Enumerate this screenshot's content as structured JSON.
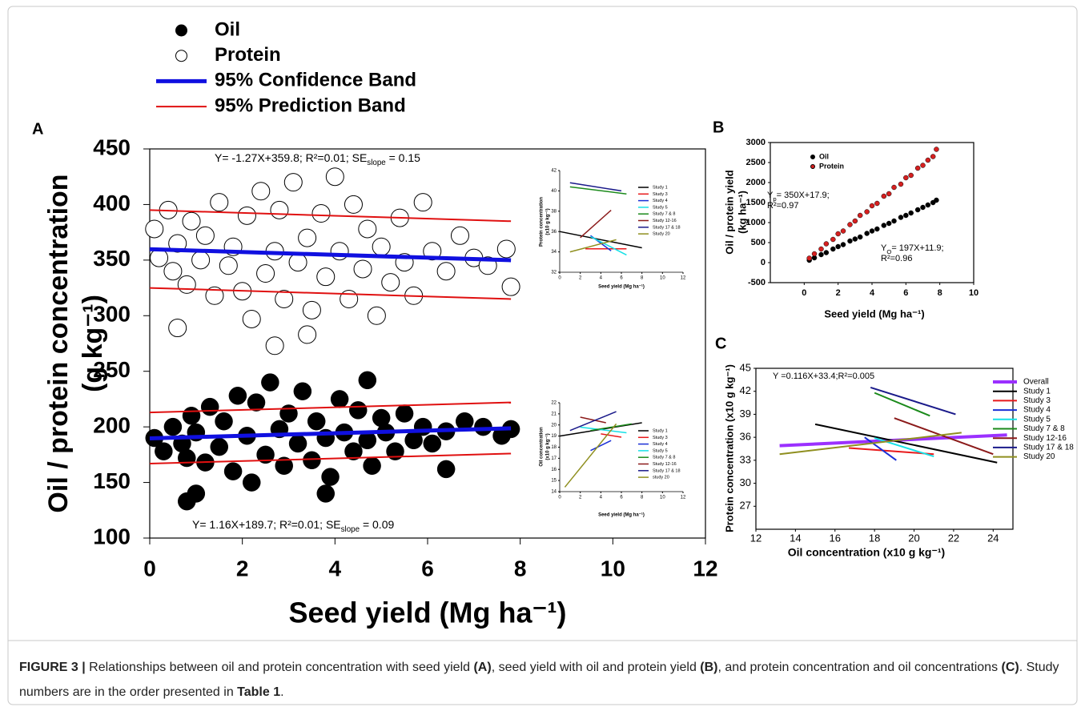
{
  "chart_data": [
    {
      "type": "scatter",
      "label": "A",
      "xlabel": "Seed yield (Mg ha⁻¹)",
      "ylabel": [
        "Oil / protein concentration",
        "(g kg⁻¹)"
      ],
      "xlim": [
        0,
        12
      ],
      "ylim": [
        100,
        450
      ],
      "xticks": [
        0,
        2,
        4,
        6,
        8,
        10,
        12
      ],
      "yticks": [
        100,
        150,
        200,
        250,
        300,
        350,
        400,
        450
      ],
      "annotations": [
        {
          "parts": [
            "Y= -1.27X+359.8; R²=0.01; SE",
            "slope",
            " = 0.15"
          ]
        },
        {
          "parts": [
            "Y= 1.16X+189.7; R²=0.01; SE",
            "slope",
            " = 0.09"
          ]
        }
      ],
      "series": [
        {
          "name": "Oil",
          "color": "#000000",
          "marker": "filled",
          "x": [
            0.1,
            0.3,
            0.5,
            0.7,
            0.8,
            0.9,
            1.0,
            1.2,
            1.3,
            1.5,
            1.6,
            1.8,
            1.9,
            2.1,
            2.2,
            2.3,
            2.5,
            2.6,
            2.8,
            2.9,
            3.0,
            3.2,
            3.3,
            3.5,
            3.6,
            3.8,
            3.9,
            4.1,
            4.2,
            4.4,
            4.5,
            4.7,
            4.8,
            5.0,
            5.1,
            5.3,
            5.5,
            5.7,
            5.9,
            6.1,
            6.4,
            6.8,
            7.2,
            7.6,
            7.8,
            0.8,
            1.0,
            3.8,
            6.4,
            4.7
          ],
          "values": [
            190,
            178,
            200,
            185,
            172,
            210,
            195,
            168,
            218,
            182,
            205,
            160,
            228,
            192,
            150,
            222,
            175,
            240,
            198,
            165,
            212,
            185,
            232,
            170,
            205,
            190,
            155,
            225,
            195,
            178,
            215,
            188,
            165,
            208,
            195,
            178,
            212,
            188,
            200,
            185,
            196,
            205,
            200,
            192,
            198,
            133,
            140,
            140,
            162,
            242
          ]
        },
        {
          "name": "Protein",
          "color": "#000000",
          "marker": "open",
          "x": [
            0.1,
            0.2,
            0.4,
            0.5,
            0.6,
            0.8,
            0.9,
            1.1,
            1.2,
            1.4,
            1.5,
            1.7,
            1.8,
            2.0,
            2.1,
            2.2,
            2.4,
            2.5,
            2.7,
            2.8,
            2.9,
            3.1,
            3.2,
            3.4,
            3.5,
            3.7,
            3.8,
            4.0,
            4.1,
            4.3,
            4.4,
            4.6,
            4.7,
            4.9,
            5.0,
            5.2,
            5.4,
            5.5,
            5.7,
            5.9,
            6.1,
            6.4,
            6.7,
            7.0,
            7.3,
            7.7,
            7.8,
            0.6,
            2.7,
            3.4
          ],
          "values": [
            378,
            352,
            395,
            340,
            365,
            328,
            385,
            350,
            372,
            318,
            402,
            345,
            362,
            322,
            390,
            297,
            412,
            338,
            358,
            395,
            315,
            420,
            348,
            370,
            305,
            392,
            335,
            425,
            358,
            315,
            400,
            342,
            378,
            300,
            362,
            330,
            388,
            348,
            318,
            402,
            358,
            340,
            372,
            352,
            345,
            360,
            326,
            289,
            273,
            283
          ]
        },
        {
          "name": "95% Confidence Band",
          "color": "#1010e0",
          "lines": [
            {
              "x": [
                0,
                7.8
              ],
              "values": [
                359.8,
                349.9
              ]
            },
            {
              "x": [
                0,
                7.8
              ],
              "values": [
                189.7,
                198.7
              ]
            }
          ]
        },
        {
          "name": "95% Prediction Band",
          "color": "#e01010",
          "lines": [
            {
              "x": [
                0,
                7.8
              ],
              "values": [
                395,
                385
              ]
            },
            {
              "x": [
                0,
                7.8
              ],
              "values": [
                325,
                315
              ]
            },
            {
              "x": [
                0,
                7.8
              ],
              "values": [
                213,
                222
              ]
            },
            {
              "x": [
                0,
                7.8
              ],
              "values": [
                167,
                176
              ]
            }
          ]
        }
      ]
    },
    {
      "type": "line",
      "xlabel": "Seed yield (Mg ha⁻¹)",
      "ylabel": [
        "Protein concentration",
        "(x10 g kg⁻¹)"
      ],
      "xlim": [
        0,
        12
      ],
      "ylim": [
        32,
        42
      ],
      "xticks": [
        0,
        2,
        4,
        6,
        8,
        10,
        12
      ],
      "yticks": [
        32,
        34,
        36,
        38,
        40,
        42
      ],
      "series": [
        {
          "name": "Study 1",
          "color": "#000000",
          "x": [
            0,
            8
          ],
          "values": [
            36,
            34.4
          ]
        },
        {
          "name": "Study 3",
          "color": "#e8191b",
          "x": [
            2.5,
            6.5
          ],
          "values": [
            34.3,
            34.3
          ]
        },
        {
          "name": "Study 4",
          "color": "#1a2fd6",
          "x": [
            3,
            5
          ],
          "values": [
            35.6,
            34.1
          ]
        },
        {
          "name": "Study 5",
          "color": "#16e0e6",
          "x": [
            3,
            6.5
          ],
          "values": [
            35.5,
            33.7
          ]
        },
        {
          "name": "Study 7 & 8",
          "color": "#1b8a1b",
          "x": [
            1,
            6.5
          ],
          "values": [
            40.4,
            39.7
          ]
        },
        {
          "name": "Study 12-16",
          "color": "#8b1a1a",
          "x": [
            2,
            5
          ],
          "values": [
            35.4,
            38.1
          ]
        },
        {
          "name": "Study 17 & 18",
          "color": "#1a1a8a",
          "x": [
            1,
            6
          ],
          "values": [
            40.8,
            40
          ]
        },
        {
          "name": "Study 20",
          "color": "#8f8f1f",
          "x": [
            1,
            5.5
          ],
          "values": [
            34,
            35.2
          ]
        }
      ]
    },
    {
      "type": "line",
      "xlabel": "Seed yield (Mg ha⁻¹)",
      "ylabel": [
        "Oil concentration",
        "(x10 g kg⁻¹)"
      ],
      "xlim": [
        0,
        12
      ],
      "ylim": [
        14,
        22
      ],
      "xticks": [
        0,
        2,
        4,
        6,
        8,
        10,
        12
      ],
      "yticks": [
        14,
        15,
        16,
        17,
        18,
        19,
        20,
        21,
        22
      ],
      "series": [
        {
          "name": "Study 1",
          "color": "#000000",
          "x": [
            0,
            8
          ],
          "values": [
            19,
            20.2
          ]
        },
        {
          "name": "Study 3",
          "color": "#e8191b",
          "x": [
            4,
            6
          ],
          "values": [
            19.2,
            18.9
          ]
        },
        {
          "name": "Study 4",
          "color": "#1a2fd6",
          "x": [
            3,
            5
          ],
          "values": [
            17.7,
            18.6
          ]
        },
        {
          "name": "Study 5",
          "color": "#16e0e6",
          "x": [
            2,
            6.5
          ],
          "values": [
            19.8,
            19.3
          ]
        },
        {
          "name": "Study 7 & 8",
          "color": "#1b8a1b",
          "x": [
            3,
            7
          ],
          "values": [
            19.5,
            20.1
          ]
        },
        {
          "name": "Study 12-16",
          "color": "#8b1a1a",
          "x": [
            2,
            4.5
          ],
          "values": [
            20.7,
            20.2
          ]
        },
        {
          "name": "Study 17 & 18",
          "color": "#1a1a8a",
          "x": [
            1,
            5.5
          ],
          "values": [
            19.5,
            21.2
          ]
        },
        {
          "name": "study 20",
          "color": "#8f8f1f",
          "x": [
            0.5,
            5.5
          ],
          "values": [
            14.4,
            20.1
          ]
        }
      ]
    },
    {
      "type": "scatter",
      "label": "B",
      "xlabel": "Seed yield (Mg ha⁻¹)",
      "ylabel": [
        "Oil / protein yield",
        "(kg ha⁻¹)"
      ],
      "xlim": [
        -2,
        10
      ],
      "ylim": [
        -500,
        3000
      ],
      "xticks": [
        0,
        2,
        4,
        6,
        8,
        10
      ],
      "yticks": [
        -500,
        0,
        500,
        1000,
        1500,
        2000,
        2500,
        3000
      ],
      "annotations": [
        {
          "parts": [
            "Y",
            "p",
            "= 350X+17.9;"
          ]
        },
        {
          "parts": [
            "R²=0.97"
          ]
        },
        {
          "parts": [
            "Y",
            "O",
            "= 197X+11.9;"
          ]
        },
        {
          "parts": [
            "R²=0.96"
          ]
        }
      ],
      "series": [
        {
          "name": "Oil",
          "color": "#000000",
          "marker": "filled",
          "x": [
            0.3,
            0.6,
            1.0,
            1.3,
            1.7,
            2.0,
            2.3,
            2.7,
            3.0,
            3.3,
            3.7,
            4.0,
            4.3,
            4.7,
            5.0,
            5.3,
            5.7,
            6.0,
            6.3,
            6.7,
            7.0,
            7.3,
            7.6,
            7.8
          ],
          "values": [
            60,
            120,
            200,
            250,
            340,
            400,
            450,
            540,
            590,
            640,
            730,
            790,
            840,
            930,
            980,
            1040,
            1130,
            1180,
            1240,
            1320,
            1380,
            1440,
            1500,
            1560
          ]
        },
        {
          "name": "Protein",
          "color": "#d62020",
          "marker": "filled",
          "x": [
            0.3,
            0.6,
            1.0,
            1.3,
            1.7,
            2.0,
            2.3,
            2.7,
            3.0,
            3.3,
            3.7,
            4.0,
            4.3,
            4.7,
            5.0,
            5.3,
            5.7,
            6.0,
            6.3,
            6.7,
            7.0,
            7.3,
            7.6,
            7.8
          ],
          "values": [
            110,
            220,
            340,
            470,
            580,
            720,
            790,
            950,
            1040,
            1180,
            1270,
            1420,
            1480,
            1660,
            1720,
            1880,
            1960,
            2120,
            2180,
            2360,
            2430,
            2560,
            2650,
            2830
          ]
        }
      ]
    },
    {
      "type": "line",
      "label": "C",
      "xlabel": "Oil concentration (x10 g kg⁻¹)",
      "ylabel": [
        "Protein concentration (x10 g kg⁻¹)"
      ],
      "xlim": [
        12,
        25
      ],
      "ylim": [
        24,
        45
      ],
      "xticks": [
        12,
        14,
        16,
        18,
        20,
        22,
        24
      ],
      "yticks": [
        27,
        30,
        33,
        36,
        39,
        42,
        45
      ],
      "annotations": [
        {
          "parts": [
            "Y =0.116X+33.4;R²=0.005"
          ]
        }
      ],
      "series": [
        {
          "name": "Overall",
          "color": "#9b30ff",
          "x": [
            13.2,
            24.7
          ],
          "values": [
            34.9,
            36.3
          ]
        },
        {
          "name": "Study 1",
          "color": "#000000",
          "x": [
            15,
            24.2
          ],
          "values": [
            37.7,
            32.7
          ]
        },
        {
          "name": "Study 3",
          "color": "#e8191b",
          "x": [
            16.7,
            21
          ],
          "values": [
            34.6,
            33.8
          ]
        },
        {
          "name": "Study 4",
          "color": "#1a2fd6",
          "x": [
            17.5,
            19.1
          ],
          "values": [
            36,
            33
          ]
        },
        {
          "name": "Study 5",
          "color": "#16e0e6",
          "x": [
            18,
            21
          ],
          "values": [
            35.9,
            33.5
          ]
        },
        {
          "name": "Study 7 & 8",
          "color": "#1b8a1b",
          "x": [
            18,
            20.8
          ],
          "values": [
            41.8,
            38.8
          ]
        },
        {
          "name": "Study 12-16",
          "color": "#8b1a1a",
          "x": [
            19,
            24
          ],
          "values": [
            38.5,
            33.8
          ]
        },
        {
          "name": "Study 17 & 18",
          "color": "#1a1a8a",
          "x": [
            17.8,
            22.1
          ],
          "values": [
            42.5,
            39
          ]
        },
        {
          "name": "Study 20",
          "color": "#8f8f1f",
          "x": [
            13.2,
            22.4
          ],
          "values": [
            33.8,
            36.6
          ]
        }
      ]
    }
  ],
  "caption": [
    {
      "text": "FIGURE 3 |",
      "bold": true
    },
    {
      "text": " Relationships between oil and protein concentration with seed yield "
    },
    {
      "text": "(A)",
      "bold": true
    },
    {
      "text": ", seed yield with oil and protein yield "
    },
    {
      "text": "(B)",
      "bold": true
    },
    {
      "text": ", and protein concentration and oil concentrations "
    },
    {
      "text": "(C)",
      "bold": true
    },
    {
      "text": ". Study numbers are in the order presented in "
    },
    {
      "text": "Table 1",
      "bold": true
    },
    {
      "text": "."
    }
  ]
}
